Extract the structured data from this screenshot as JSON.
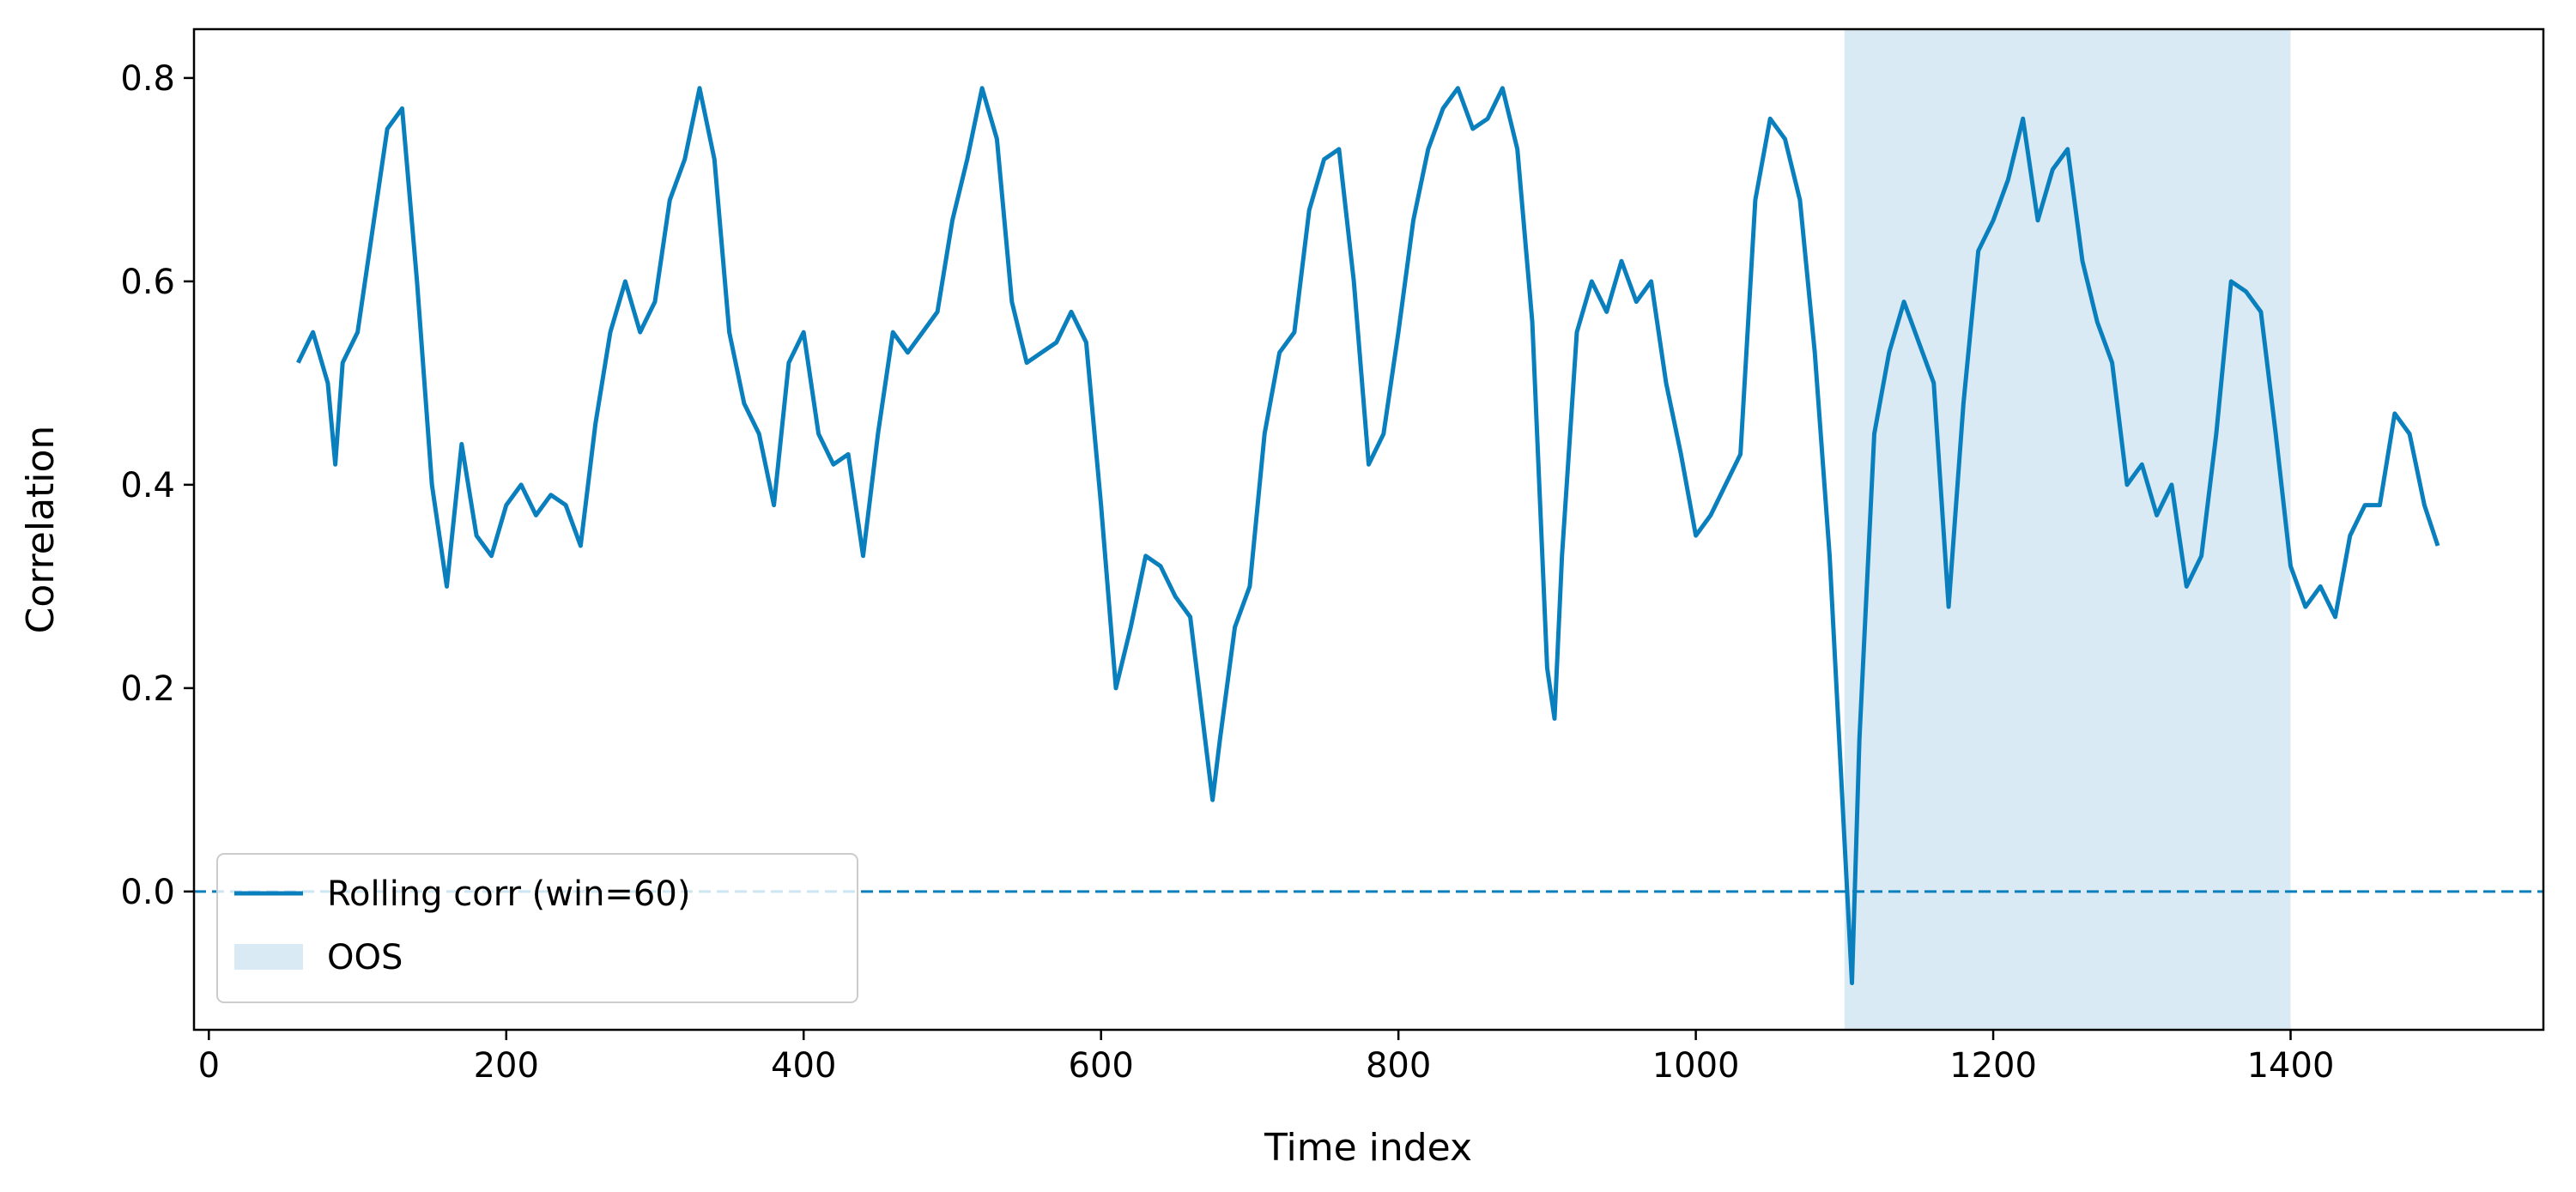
{
  "chart_data": {
    "type": "line",
    "x_label": "Time index",
    "y_label": "Correlation",
    "x": [
      60,
      70,
      80,
      85,
      90,
      100,
      110,
      120,
      130,
      140,
      150,
      160,
      170,
      180,
      190,
      200,
      210,
      220,
      230,
      240,
      250,
      260,
      270,
      280,
      290,
      300,
      310,
      320,
      330,
      340,
      350,
      360,
      370,
      380,
      390,
      400,
      410,
      420,
      430,
      440,
      450,
      460,
      470,
      480,
      490,
      500,
      510,
      520,
      530,
      540,
      550,
      560,
      570,
      580,
      590,
      600,
      610,
      620,
      630,
      640,
      650,
      660,
      670,
      675,
      680,
      690,
      700,
      710,
      720,
      730,
      740,
      750,
      760,
      770,
      780,
      790,
      800,
      810,
      820,
      830,
      840,
      850,
      860,
      870,
      880,
      890,
      900,
      905,
      910,
      920,
      930,
      940,
      950,
      960,
      970,
      980,
      990,
      1000,
      1010,
      1020,
      1030,
      1040,
      1050,
      1060,
      1070,
      1080,
      1090,
      1100,
      1105,
      1110,
      1120,
      1130,
      1140,
      1150,
      1160,
      1170,
      1180,
      1190,
      1200,
      1210,
      1220,
      1230,
      1240,
      1250,
      1260,
      1270,
      1280,
      1290,
      1300,
      1310,
      1320,
      1330,
      1340,
      1350,
      1360,
      1370,
      1380,
      1390,
      1400,
      1410,
      1420,
      1430,
      1440,
      1450,
      1460,
      1470,
      1480,
      1490,
      1499
    ],
    "series": [
      {
        "name": "Rolling corr (win=60)",
        "color": "#0a7fbd",
        "values": [
          0.52,
          0.55,
          0.5,
          0.42,
          0.52,
          0.55,
          0.65,
          0.75,
          0.77,
          0.6,
          0.4,
          0.3,
          0.44,
          0.35,
          0.33,
          0.38,
          0.4,
          0.37,
          0.39,
          0.38,
          0.34,
          0.46,
          0.55,
          0.6,
          0.55,
          0.58,
          0.68,
          0.72,
          0.79,
          0.72,
          0.55,
          0.48,
          0.45,
          0.38,
          0.52,
          0.55,
          0.45,
          0.42,
          0.43,
          0.33,
          0.45,
          0.55,
          0.53,
          0.55,
          0.57,
          0.66,
          0.72,
          0.79,
          0.74,
          0.58,
          0.52,
          0.53,
          0.54,
          0.57,
          0.54,
          0.38,
          0.2,
          0.26,
          0.33,
          0.32,
          0.29,
          0.27,
          0.15,
          0.09,
          0.15,
          0.26,
          0.3,
          0.45,
          0.53,
          0.55,
          0.67,
          0.72,
          0.73,
          0.6,
          0.42,
          0.45,
          0.55,
          0.66,
          0.73,
          0.77,
          0.79,
          0.75,
          0.76,
          0.79,
          0.73,
          0.56,
          0.22,
          0.17,
          0.33,
          0.55,
          0.6,
          0.57,
          0.62,
          0.58,
          0.6,
          0.5,
          0.43,
          0.35,
          0.37,
          0.4,
          0.43,
          0.68,
          0.76,
          0.74,
          0.68,
          0.53,
          0.33,
          0.05,
          -0.09,
          0.15,
          0.45,
          0.53,
          0.58,
          0.54,
          0.5,
          0.28,
          0.48,
          0.63,
          0.66,
          0.7,
          0.76,
          0.66,
          0.71,
          0.73,
          0.62,
          0.56,
          0.52,
          0.4,
          0.42,
          0.37,
          0.4,
          0.3,
          0.33,
          0.45,
          0.6,
          0.59,
          0.57,
          0.45,
          0.32,
          0.28,
          0.3,
          0.27,
          0.35,
          0.38,
          0.38,
          0.47,
          0.45,
          0.38,
          0.34
        ]
      }
    ],
    "spans": [
      {
        "name": "OOS",
        "color": "#d9eaf5",
        "x": [
          1100,
          1400
        ]
      }
    ],
    "hline": 0,
    "hline_style": "dashed",
    "xlim": [
      -10,
      1570
    ],
    "ylim": [
      -0.136,
      0.848
    ],
    "xticks": [
      0,
      200,
      400,
      600,
      800,
      1000,
      1200,
      1400
    ],
    "yticks": [
      {
        "value": 0,
        "label": "0.0"
      },
      0.2,
      0.4,
      0.6,
      0.8
    ],
    "legend": "lower left",
    "grid": false
  }
}
